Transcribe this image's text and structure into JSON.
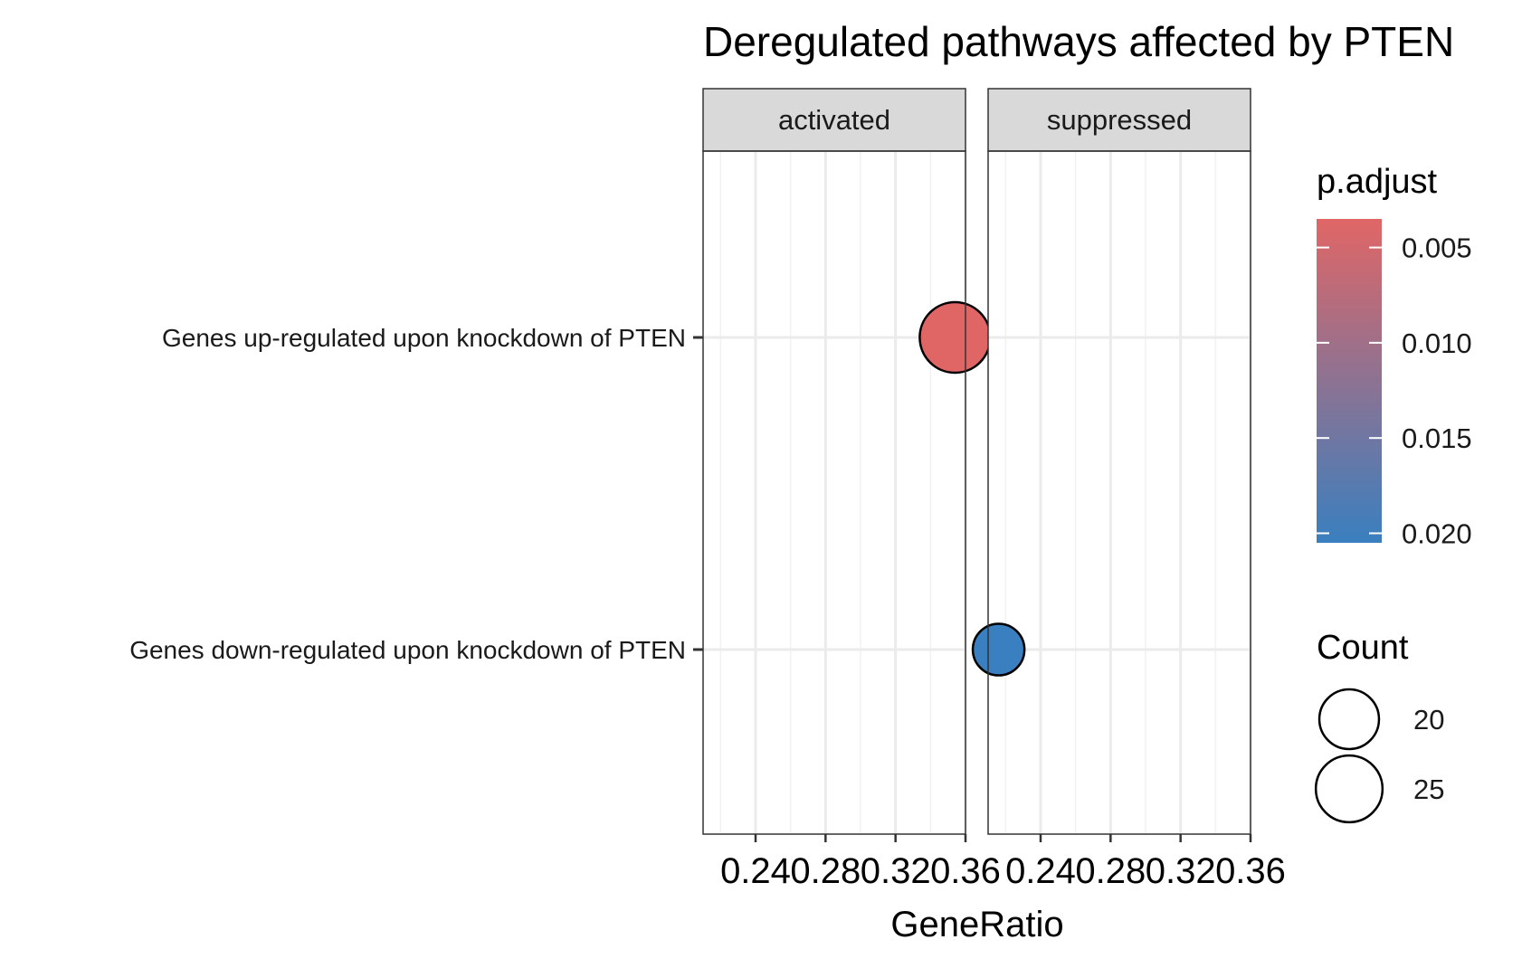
{
  "chart_data": {
    "type": "scatter",
    "title": "Deregulated pathways affected by PTEN",
    "xlabel": "GeneRatio",
    "ylabel": "",
    "xlim": [
      0.21,
      0.36
    ],
    "x_ticks": [
      0.24,
      0.28,
      0.32,
      0.36
    ],
    "x_tick_labels": [
      "0.24",
      "0.28",
      "0.32",
      "0.36"
    ],
    "panels": [
      "activated",
      "suppressed"
    ],
    "categories": [
      "Genes up-regulated upon knockdown of PTEN",
      "Genes down-regulated upon knockdown of PTEN"
    ],
    "points": [
      {
        "panel": "activated",
        "category": "Genes up-regulated upon knockdown of PTEN",
        "x": 0.354,
        "count": 28,
        "p_adjust": 0.0035
      },
      {
        "panel": "suppressed",
        "category": "Genes down-regulated upon knockdown of PTEN",
        "x": 0.216,
        "count": 15,
        "p_adjust": 0.0205
      }
    ],
    "color_legend": {
      "title": "p.adjust",
      "low_color": "#E06666",
      "high_color": "#3A7FBF",
      "range": [
        0.0035,
        0.0205
      ],
      "ticks": [
        0.005,
        0.01,
        0.015,
        0.02
      ],
      "tick_labels": [
        "0.005",
        "0.010",
        "0.015",
        "0.020"
      ]
    },
    "size_legend": {
      "title": "Count",
      "values": [
        20,
        25
      ],
      "labels": [
        "20",
        "25"
      ]
    },
    "grid": true,
    "legend_position": "right"
  }
}
